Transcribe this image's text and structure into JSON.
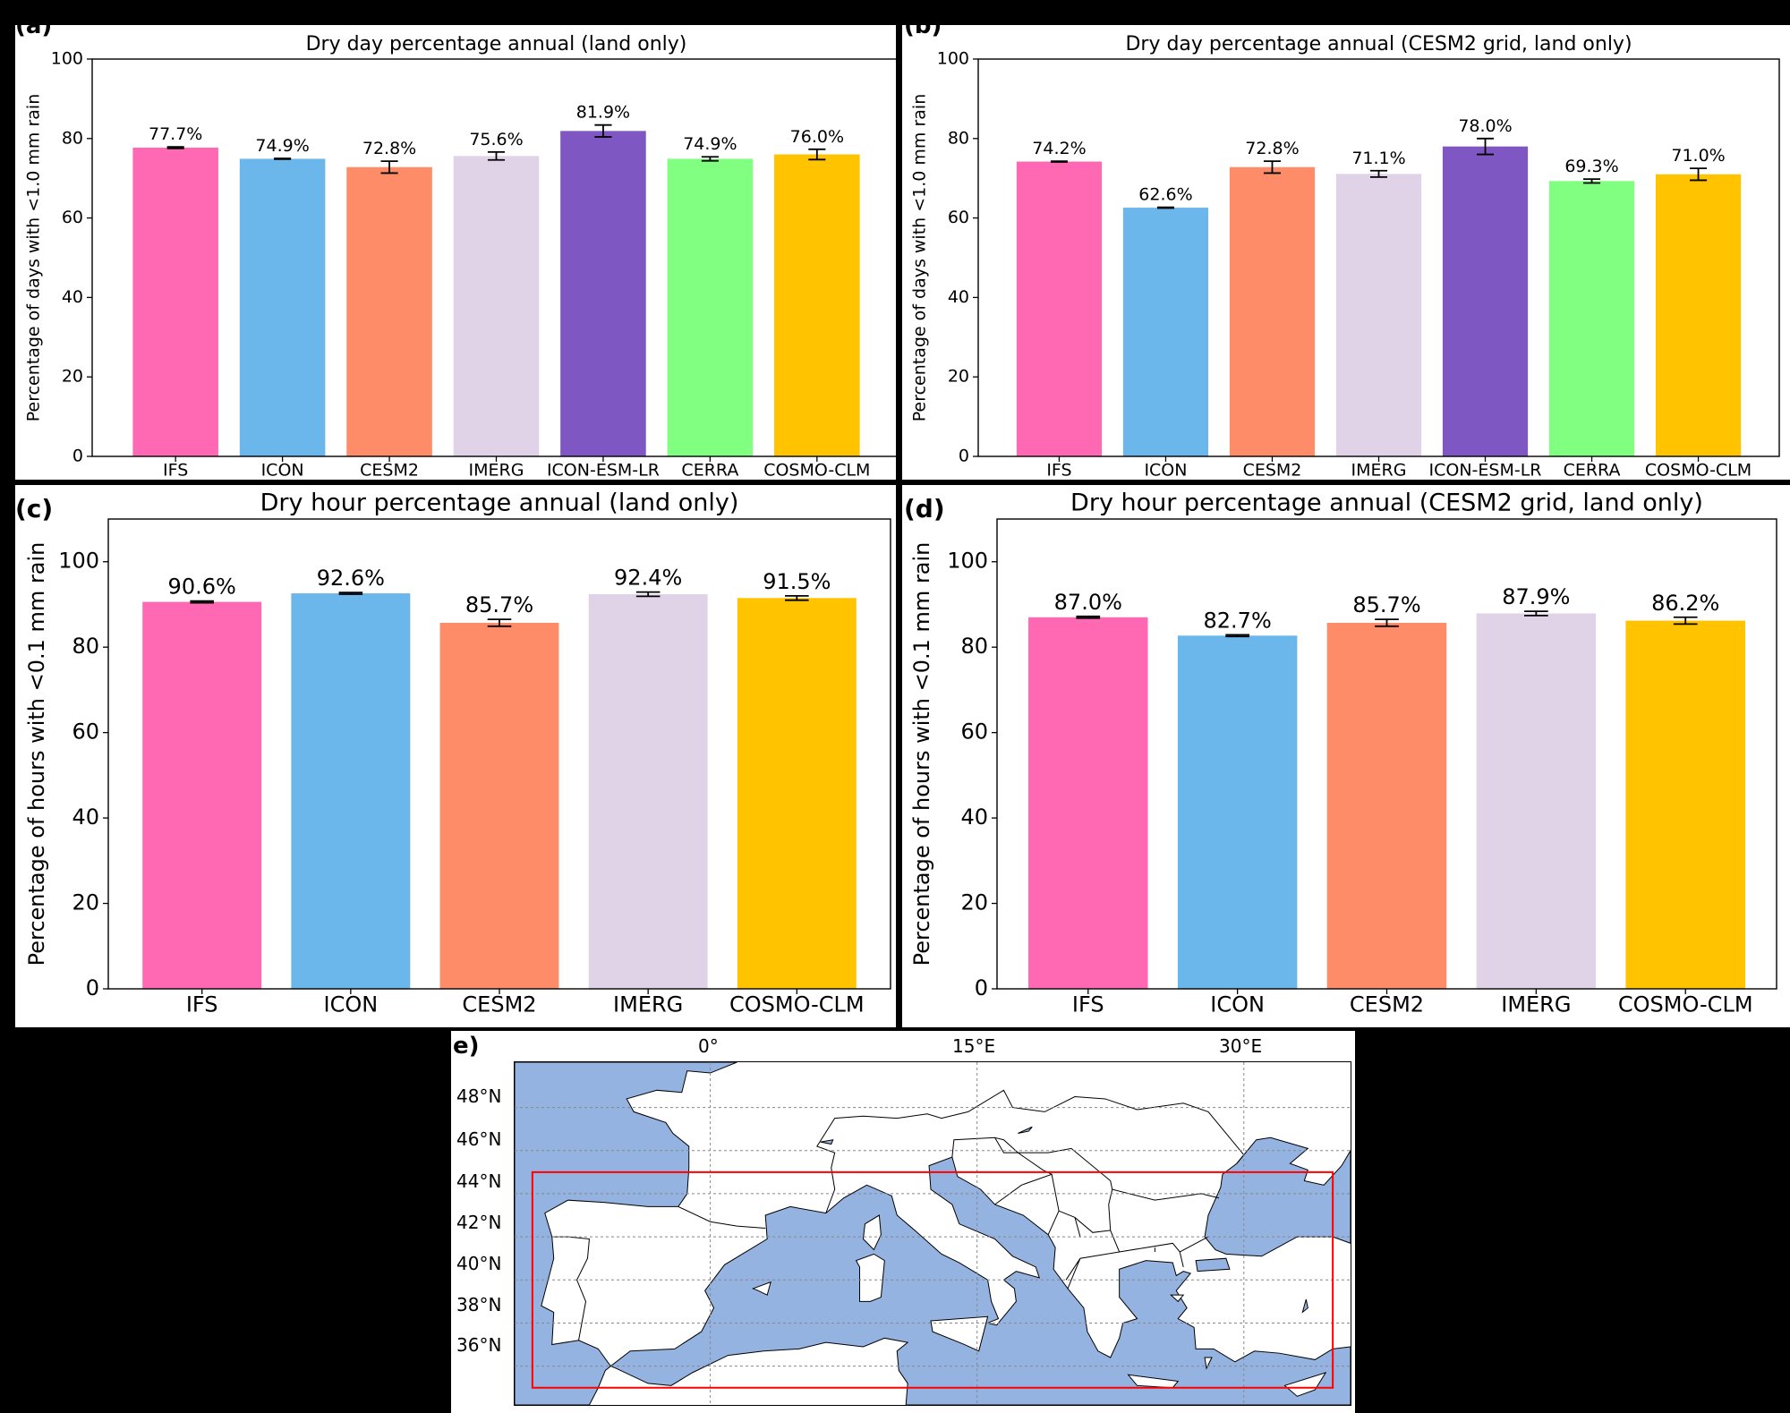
{
  "panel_labels": {
    "a": "(a)",
    "b": "(b)",
    "c": "(c)",
    "d": "(d)",
    "e": "e)"
  },
  "chart_data": [
    {
      "id": "a",
      "type": "bar",
      "title": "Dry day percentage annual (land only)",
      "xlabel": "",
      "ylabel": "Percentage of days with <1.0 mm rain",
      "ylim": [
        0,
        100
      ],
      "yticks": [
        "0",
        "20",
        "40",
        "60",
        "80",
        "100"
      ],
      "categories": [
        "IFS",
        "ICON",
        "CESM2",
        "IMERG",
        "ICON-ESM-LR",
        "CERRA",
        "COSMO-CLM"
      ],
      "values": [
        77.7,
        74.9,
        72.8,
        75.6,
        81.9,
        74.9,
        76.0
      ],
      "errors": [
        0.2,
        0.1,
        1.5,
        1.0,
        1.5,
        0.5,
        1.3
      ],
      "labels": [
        "77.7%",
        "74.9%",
        "72.8%",
        "75.6%",
        "81.9%",
        "74.9%",
        "76.0%"
      ],
      "colors": [
        "#ff69b4",
        "#6bb6ea",
        "#ff8c69",
        "#e0d3e8",
        "#7e57c2",
        "#80ff80",
        "#ffc300"
      ],
      "grid": false
    },
    {
      "id": "b",
      "type": "bar",
      "title": "Dry day percentage annual (CESM2 grid, land only)",
      "xlabel": "",
      "ylabel": "Percentage of days with <1.0 mm rain",
      "ylim": [
        0,
        100
      ],
      "yticks": [
        "0",
        "20",
        "40",
        "60",
        "80",
        "100"
      ],
      "categories": [
        "IFS",
        "ICON",
        "CESM2",
        "IMERG",
        "ICON-ESM-LR",
        "CERRA",
        "COSMO-CLM"
      ],
      "values": [
        74.2,
        62.6,
        72.8,
        71.1,
        78.0,
        69.3,
        71.0
      ],
      "errors": [
        0.1,
        0.1,
        1.5,
        0.8,
        2.0,
        0.5,
        1.5
      ],
      "labels": [
        "74.2%",
        "62.6%",
        "72.8%",
        "71.1%",
        "78.0%",
        "69.3%",
        "71.0%"
      ],
      "colors": [
        "#ff69b4",
        "#6bb6ea",
        "#ff8c69",
        "#e0d3e8",
        "#7e57c2",
        "#80ff80",
        "#ffc300"
      ],
      "grid": false
    },
    {
      "id": "c",
      "type": "bar",
      "title": "Dry hour percentage annual (land only)",
      "xlabel": "",
      "ylabel": "Percentage of hours with <0.1 mm rain",
      "ylim": [
        0,
        110
      ],
      "yticks": [
        "0",
        "20",
        "40",
        "60",
        "80",
        "100"
      ],
      "categories": [
        "IFS",
        "ICON",
        "CESM2",
        "IMERG",
        "COSMO-CLM"
      ],
      "values": [
        90.6,
        92.6,
        85.7,
        92.4,
        91.5
      ],
      "errors": [
        0.2,
        0.2,
        0.8,
        0.5,
        0.5
      ],
      "labels": [
        "90.6%",
        "92.6%",
        "85.7%",
        "92.4%",
        "91.5%"
      ],
      "colors": [
        "#ff69b4",
        "#6bb6ea",
        "#ff8c69",
        "#e0d3e8",
        "#ffc300"
      ],
      "grid": false
    },
    {
      "id": "d",
      "type": "bar",
      "title": "Dry hour percentage annual (CESM2 grid, land only)",
      "xlabel": "",
      "ylabel": "Percentage of hours with <0.1 mm rain",
      "ylim": [
        0,
        110
      ],
      "yticks": [
        "0",
        "20",
        "40",
        "60",
        "80",
        "100"
      ],
      "categories": [
        "IFS",
        "ICON",
        "CESM2",
        "IMERG",
        "COSMO-CLM"
      ],
      "values": [
        87.0,
        82.7,
        85.7,
        87.9,
        86.2
      ],
      "errors": [
        0.2,
        0.2,
        0.8,
        0.5,
        0.8
      ],
      "labels": [
        "87.0%",
        "82.7%",
        "85.7%",
        "87.9%",
        "86.2%"
      ],
      "colors": [
        "#ff69b4",
        "#6bb6ea",
        "#ff8c69",
        "#e0d3e8",
        "#ffc300"
      ],
      "grid": false
    }
  ],
  "map": {
    "lon_labels": [
      "0°",
      "15°E",
      "30°E"
    ],
    "lat_labels": [
      "48°N",
      "46°N",
      "44°N",
      "42°N",
      "40°N",
      "38°N",
      "36°N"
    ],
    "extent_lon": [
      -11,
      36
    ],
    "extent_lat": [
      34.2,
      50.1
    ],
    "domain_box": {
      "lon": [
        -10,
        35
      ],
      "lat": [
        35,
        45
      ],
      "color": "#ff0000"
    },
    "sea_color": "#95b3e0",
    "land_color": "#ffffff"
  }
}
